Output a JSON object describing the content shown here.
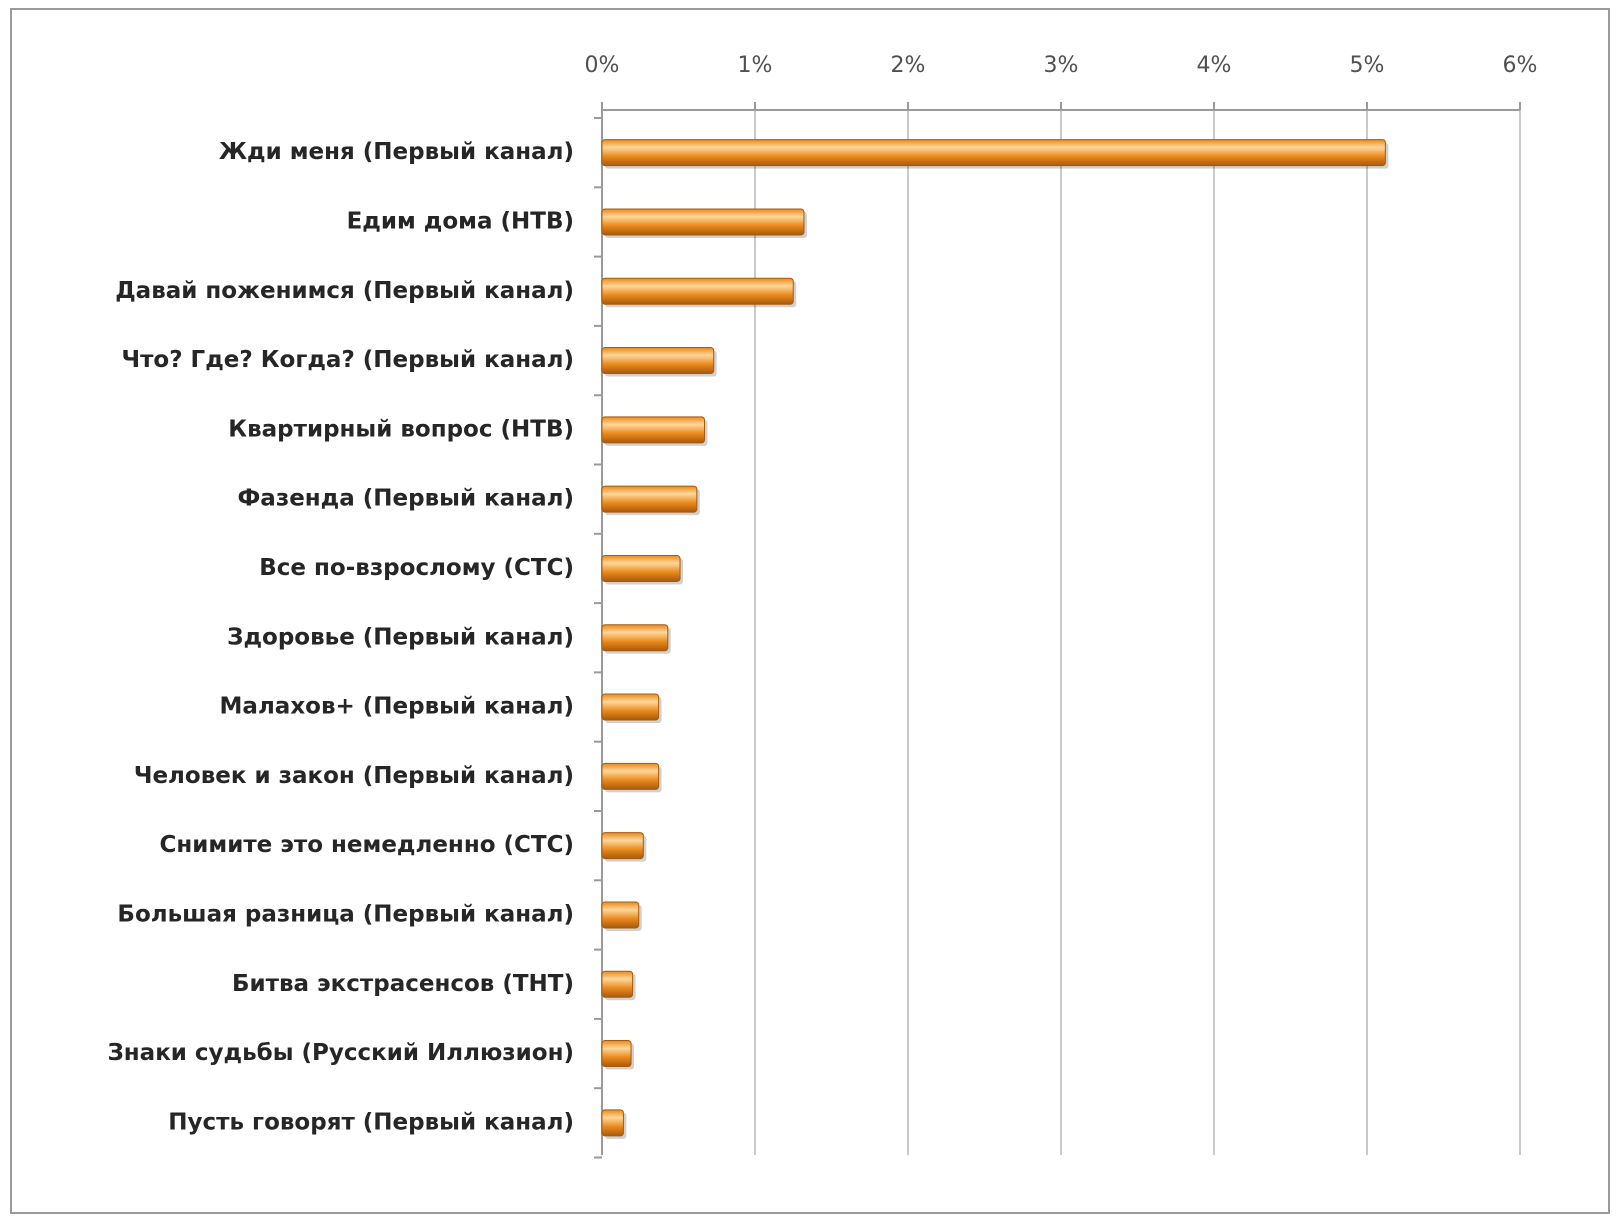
{
  "chart_data": {
    "type": "bar",
    "orientation": "horizontal",
    "axis_position": "top",
    "categories": [
      "Жди меня (Первый канал)",
      "Едим дома (НТВ)",
      "Давай поженимся (Первый канал)",
      "Что? Где? Когда? (Первый канал)",
      "Квартирный вопрос (НТВ)",
      "Фазенда (Первый канал)",
      "Все по-взрослому (СТС)",
      "Здоровье (Первый канал)",
      "Малахов+ (Первый канал)",
      "Человек и закон (Первый канал)",
      "Снимите это немедленно (СТС)",
      "Большая разница (Первый канал)",
      "Битва экстрасенсов (ТНТ)",
      "Знаки судьбы (Русский Иллюзион)",
      "Пусть говорят (Первый канал)"
    ],
    "values": [
      5.12,
      1.32,
      1.25,
      0.73,
      0.67,
      0.62,
      0.51,
      0.43,
      0.37,
      0.37,
      0.27,
      0.24,
      0.2,
      0.19,
      0.14
    ],
    "xlim": [
      0,
      6
    ],
    "x_ticks": [
      "0%",
      "1%",
      "2%",
      "3%",
      "4%",
      "5%",
      "6%"
    ],
    "grid": true,
    "bar_color": "#e8891c",
    "bar_highlight": "#ffd79a",
    "bar_shadow": "#a85a0c"
  }
}
